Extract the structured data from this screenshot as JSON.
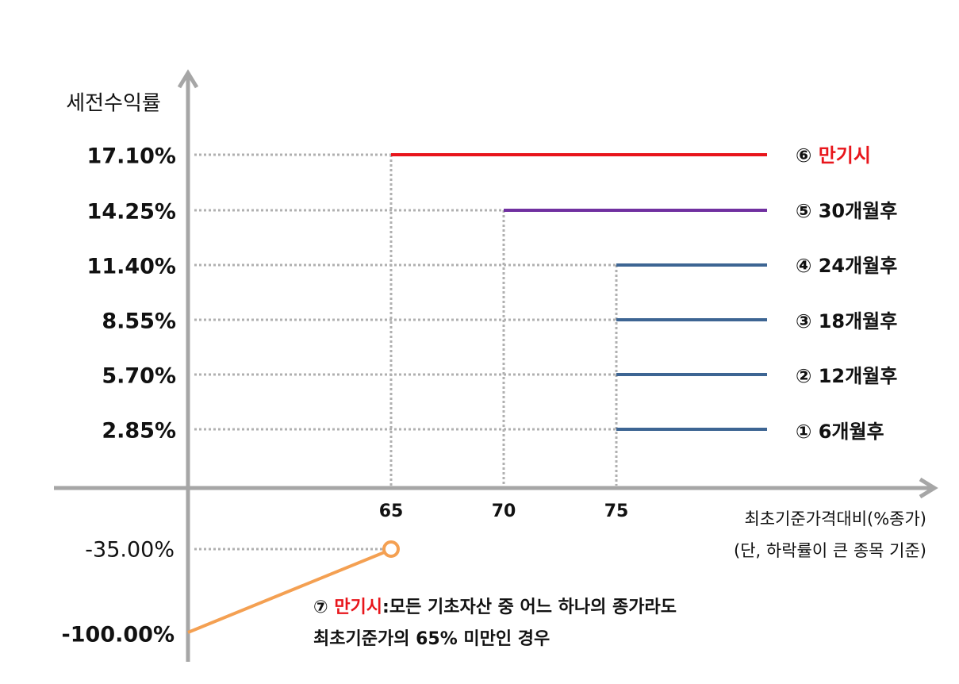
{
  "y_axis": {
    "title": "세전수익률",
    "labels": [
      "17.10%",
      "14.25%",
      "11.40%",
      "8.55%",
      "5.70%",
      "2.85%",
      "-35.00%",
      "-100.00%"
    ]
  },
  "x_axis": {
    "labels": [
      "65",
      "70",
      "75"
    ],
    "title": "최초기준가격대비(%종가)",
    "note": "(단, 하락률이 큰 종목 기준)"
  },
  "payoffs": [
    {
      "marker": "⑥",
      "label": "만기시"
    },
    {
      "marker": "⑤",
      "label": "30개월후"
    },
    {
      "marker": "④",
      "label": "24개월후"
    },
    {
      "marker": "③",
      "label": "18개월후"
    },
    {
      "marker": "②",
      "label": "12개월후"
    },
    {
      "marker": "①",
      "label": "6개월후"
    }
  ],
  "loss_note": {
    "marker": "⑦",
    "highlight": "만기시",
    "text": ":모든 기초자산 중 어느 하나의 종가라도",
    "line2": "최초기준가의 65% 미만인 경우"
  }
}
